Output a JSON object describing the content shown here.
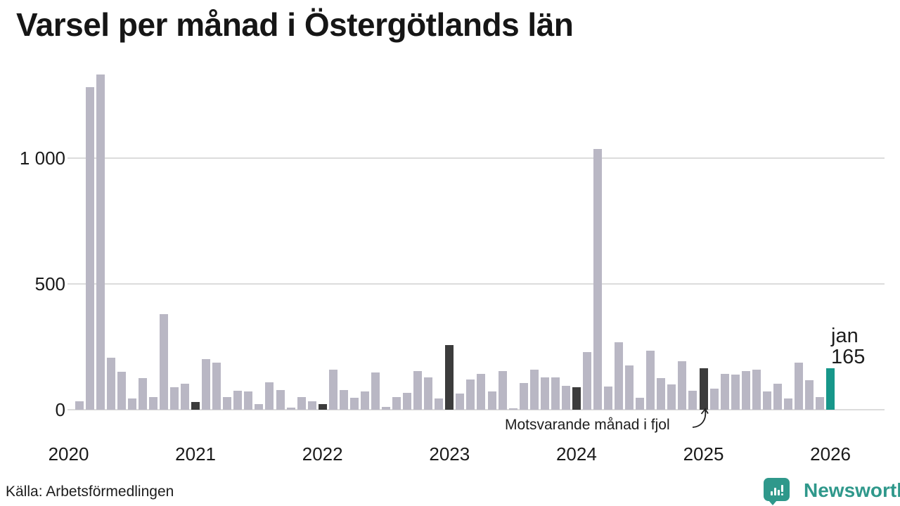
{
  "title": "Varsel per månad i Östergötlands län",
  "source": "Källa: Arbetsförmedlingen",
  "branding": {
    "name": "Newsworthy",
    "icon": "newsworthy-badge-barchart-icon"
  },
  "annotation": {
    "text": "Motsvarande månad i fjol",
    "points_to_month": "2025-01"
  },
  "current_label": {
    "line1": "jan",
    "line2": "165"
  },
  "colors": {
    "bar": "#b9b7c4",
    "january": "#3c3c3c",
    "current": "#17978a",
    "gridline": "#dcdcdc",
    "text": "#1a1a1a",
    "logo": "#2f988b"
  },
  "chart_data": {
    "type": "bar",
    "title": "Varsel per månad i Östergötlands län",
    "xlabel": "",
    "ylabel": "",
    "ylim": [
      0,
      1400
    ],
    "grid": "horizontal",
    "yticks": [
      {
        "value": 0,
        "label": "0"
      },
      {
        "value": 500,
        "label": "500"
      },
      {
        "value": 1000,
        "label": "1 000"
      }
    ],
    "year_ticks": [
      "2020",
      "2021",
      "2022",
      "2023",
      "2024",
      "2025",
      "2026"
    ],
    "months": [
      {
        "month": "2020-01",
        "value": 0,
        "role": "january"
      },
      {
        "month": "2020-02",
        "value": 33
      },
      {
        "month": "2020-03",
        "value": 1282
      },
      {
        "month": "2020-04",
        "value": 1332
      },
      {
        "month": "2020-05",
        "value": 206
      },
      {
        "month": "2020-06",
        "value": 152
      },
      {
        "month": "2020-07",
        "value": 45
      },
      {
        "month": "2020-08",
        "value": 125
      },
      {
        "month": "2020-09",
        "value": 51
      },
      {
        "month": "2020-10",
        "value": 379
      },
      {
        "month": "2020-11",
        "value": 88
      },
      {
        "month": "2020-12",
        "value": 102
      },
      {
        "month": "2021-01",
        "value": 30,
        "role": "january"
      },
      {
        "month": "2021-02",
        "value": 202
      },
      {
        "month": "2021-03",
        "value": 186
      },
      {
        "month": "2021-04",
        "value": 51
      },
      {
        "month": "2021-05",
        "value": 76
      },
      {
        "month": "2021-06",
        "value": 72
      },
      {
        "month": "2021-07",
        "value": 21
      },
      {
        "month": "2021-08",
        "value": 110
      },
      {
        "month": "2021-09",
        "value": 77
      },
      {
        "month": "2021-10",
        "value": 9
      },
      {
        "month": "2021-11",
        "value": 51
      },
      {
        "month": "2021-12",
        "value": 33
      },
      {
        "month": "2022-01",
        "value": 23,
        "role": "january"
      },
      {
        "month": "2022-02",
        "value": 158
      },
      {
        "month": "2022-03",
        "value": 77
      },
      {
        "month": "2022-04",
        "value": 48
      },
      {
        "month": "2022-05",
        "value": 72
      },
      {
        "month": "2022-06",
        "value": 149
      },
      {
        "month": "2022-07",
        "value": 11
      },
      {
        "month": "2022-08",
        "value": 49
      },
      {
        "month": "2022-09",
        "value": 67
      },
      {
        "month": "2022-10",
        "value": 154
      },
      {
        "month": "2022-11",
        "value": 128
      },
      {
        "month": "2022-12",
        "value": 44
      },
      {
        "month": "2023-01",
        "value": 257,
        "role": "january"
      },
      {
        "month": "2023-02",
        "value": 63
      },
      {
        "month": "2023-03",
        "value": 121
      },
      {
        "month": "2023-04",
        "value": 142
      },
      {
        "month": "2023-05",
        "value": 73
      },
      {
        "month": "2023-06",
        "value": 153
      },
      {
        "month": "2023-07",
        "value": 6
      },
      {
        "month": "2023-08",
        "value": 107
      },
      {
        "month": "2023-09",
        "value": 158
      },
      {
        "month": "2023-10",
        "value": 128
      },
      {
        "month": "2023-11",
        "value": 128
      },
      {
        "month": "2023-12",
        "value": 96
      },
      {
        "month": "2024-01",
        "value": 90,
        "role": "january"
      },
      {
        "month": "2024-02",
        "value": 228
      },
      {
        "month": "2024-03",
        "value": 1035
      },
      {
        "month": "2024-04",
        "value": 93
      },
      {
        "month": "2024-05",
        "value": 268
      },
      {
        "month": "2024-06",
        "value": 177
      },
      {
        "month": "2024-07",
        "value": 48
      },
      {
        "month": "2024-08",
        "value": 235
      },
      {
        "month": "2024-09",
        "value": 126
      },
      {
        "month": "2024-10",
        "value": 100
      },
      {
        "month": "2024-11",
        "value": 193
      },
      {
        "month": "2024-12",
        "value": 75
      },
      {
        "month": "2025-01",
        "value": 165,
        "role": "january"
      },
      {
        "month": "2025-02",
        "value": 84
      },
      {
        "month": "2025-03",
        "value": 142
      },
      {
        "month": "2025-04",
        "value": 140
      },
      {
        "month": "2025-05",
        "value": 154
      },
      {
        "month": "2025-06",
        "value": 160
      },
      {
        "month": "2025-07",
        "value": 72
      },
      {
        "month": "2025-08",
        "value": 102
      },
      {
        "month": "2025-09",
        "value": 45
      },
      {
        "month": "2025-10",
        "value": 188
      },
      {
        "month": "2025-11",
        "value": 116
      },
      {
        "month": "2025-12",
        "value": 51
      },
      {
        "month": "2026-01",
        "value": 165,
        "role": "current"
      }
    ],
    "legend": "none"
  }
}
